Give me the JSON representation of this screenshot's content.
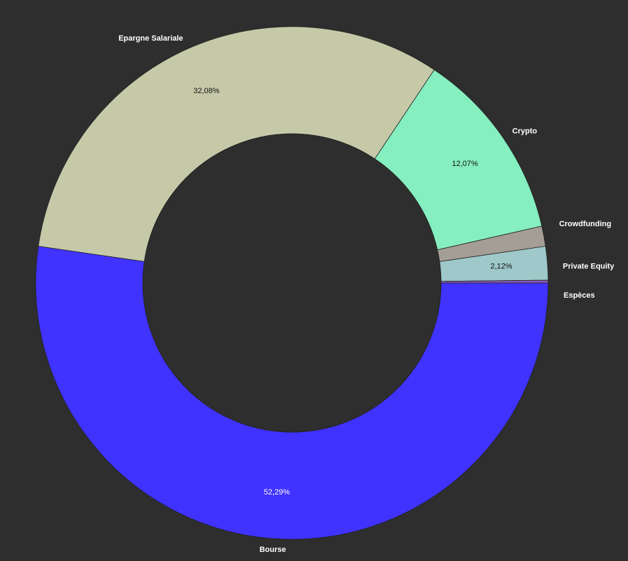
{
  "chart_data": {
    "type": "pie",
    "variant": "donut",
    "title": "",
    "legend": "none",
    "start_angle_deg": 0,
    "direction": "clockwise",
    "slices": [
      {
        "label": "Bourse",
        "value": 52.29,
        "percent_label": "52,29%",
        "color": "#4033ff",
        "label_color": "#ffffff"
      },
      {
        "label": "Epargne Salariale",
        "value": 32.08,
        "percent_label": "32,08%",
        "color": "#c6c9a8",
        "label_color": "#111111"
      },
      {
        "label": "Crypto",
        "value": 12.07,
        "percent_label": "12,07%",
        "color": "#86efbf",
        "label_color": "#111111"
      },
      {
        "label": "Crowdfunding",
        "value": 1.27,
        "percent_label": "",
        "color": "#a59e96",
        "label_color": "#111111"
      },
      {
        "label": "Private Equity",
        "value": 2.12,
        "percent_label": "2,12%",
        "color": "#9ec8ca",
        "label_color": "#111111"
      },
      {
        "label": "Espèces",
        "value": 0.17,
        "percent_label": "",
        "color": "#8b5ab8",
        "label_color": "#111111"
      }
    ]
  }
}
